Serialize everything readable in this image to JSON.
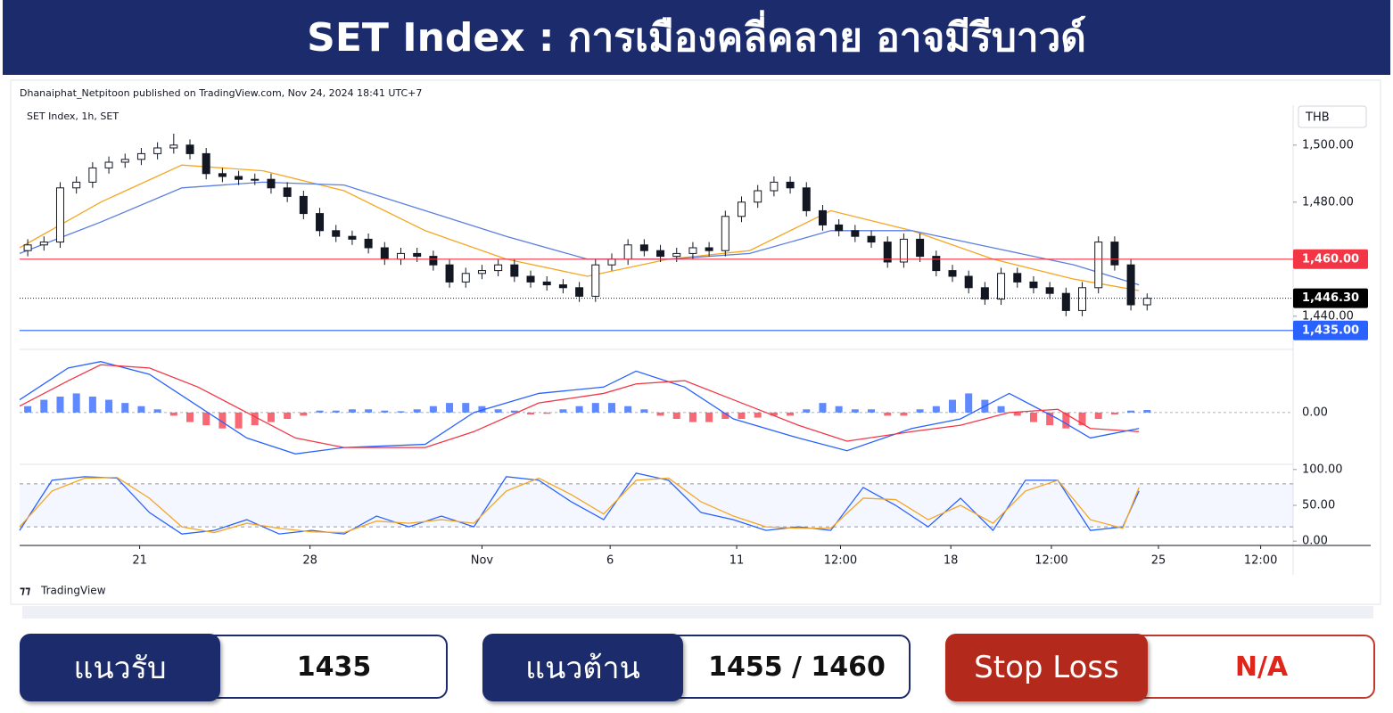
{
  "header": {
    "title": "SET Index : การเมืองคลี่คลาย อาจมีรีบาวด์"
  },
  "attribution": "Dhanaiphat_Netpitoon published on TradingView.com, Nov 24, 2024 18:41 UTC+7",
  "brand": "TradingView",
  "chart_data": [
    {
      "type": "candlestick",
      "symbol": "SET Index, 1h, SET",
      "currency": "THB",
      "open": [
        1463,
        1465,
        1466,
        1485,
        1487,
        1492,
        1494,
        1495,
        1497,
        1499,
        1500,
        1497,
        1490,
        1489,
        1488,
        1488,
        1485,
        1482,
        1476,
        1470,
        1468,
        1467,
        1464,
        1460,
        1462,
        1461,
        1458,
        1452,
        1455,
        1456,
        1458,
        1454,
        1452,
        1451,
        1450,
        1447,
        1458,
        1460,
        1465,
        1463,
        1461,
        1462,
        1464,
        1463,
        1475,
        1480,
        1484,
        1487,
        1485,
        1477,
        1472,
        1470,
        1468,
        1466,
        1459,
        1467,
        1461,
        1456,
        1454,
        1450,
        1446,
        1455,
        1452,
        1450,
        1448,
        1442,
        1450,
        1466,
        1458,
        1444
      ],
      "high": [
        1467,
        1468,
        1487,
        1489,
        1494,
        1496,
        1497,
        1499,
        1501,
        1504,
        1502,
        1499,
        1492,
        1491,
        1490,
        1490,
        1487,
        1484,
        1478,
        1472,
        1470,
        1469,
        1466,
        1464,
        1464,
        1463,
        1460,
        1457,
        1458,
        1460,
        1460,
        1456,
        1454,
        1453,
        1452,
        1460,
        1462,
        1467,
        1467,
        1465,
        1464,
        1466,
        1466,
        1477,
        1482,
        1486,
        1489,
        1489,
        1487,
        1479,
        1474,
        1472,
        1470,
        1468,
        1469,
        1469,
        1463,
        1458,
        1456,
        1452,
        1457,
        1457,
        1454,
        1452,
        1450,
        1452,
        1468,
        1468,
        1460,
        1448
      ],
      "low": [
        1461,
        1463,
        1464,
        1483,
        1485,
        1490,
        1492,
        1493,
        1495,
        1497,
        1495,
        1488,
        1487,
        1486,
        1486,
        1483,
        1480,
        1474,
        1468,
        1466,
        1465,
        1462,
        1458,
        1458,
        1459,
        1456,
        1450,
        1450,
        1453,
        1454,
        1452,
        1450,
        1449,
        1448,
        1445,
        1445,
        1456,
        1458,
        1461,
        1459,
        1459,
        1460,
        1461,
        1461,
        1473,
        1478,
        1482,
        1483,
        1475,
        1470,
        1468,
        1466,
        1464,
        1457,
        1457,
        1459,
        1454,
        1452,
        1448,
        1444,
        1444,
        1450,
        1448,
        1446,
        1440,
        1440,
        1448,
        1456,
        1442,
        1442
      ],
      "close": [
        1465,
        1466,
        1485,
        1487,
        1492,
        1494,
        1495,
        1497,
        1499,
        1500,
        1497,
        1490,
        1489,
        1488,
        1488,
        1485,
        1482,
        1476,
        1470,
        1468,
        1467,
        1464,
        1460,
        1462,
        1461,
        1458,
        1452,
        1455,
        1456,
        1458,
        1454,
        1452,
        1451,
        1450,
        1447,
        1458,
        1460,
        1465,
        1463,
        1461,
        1462,
        1464,
        1463,
        1475,
        1480,
        1484,
        1487,
        1485,
        1477,
        1472,
        1470,
        1468,
        1466,
        1459,
        1467,
        1461,
        1456,
        1454,
        1450,
        1446,
        1455,
        1452,
        1450,
        1448,
        1442,
        1450,
        1466,
        1458,
        1444,
        1446.3
      ],
      "up_color": "#ffffff",
      "down_color": "#131722",
      "overlays": [
        {
          "color": "#f5a623",
          "x": [
            0,
            5,
            10,
            15,
            20,
            25,
            30,
            35,
            40,
            45,
            50,
            55,
            60,
            65,
            69
          ],
          "values": [
            1464,
            1480,
            1493,
            1491,
            1484,
            1470,
            1460,
            1454,
            1460,
            1463,
            1477,
            1470,
            1460,
            1453,
            1449
          ]
        },
        {
          "color": "#5b7fe0",
          "x": [
            0,
            5,
            10,
            15,
            20,
            25,
            30,
            35,
            40,
            45,
            50,
            55,
            60,
            65,
            69
          ],
          "values": [
            1462,
            1473,
            1485,
            1487,
            1486,
            1477,
            1468,
            1460,
            1460,
            1462,
            1470,
            1470,
            1464,
            1458,
            1451
          ]
        }
      ],
      "levels": [
        {
          "value": 1460,
          "label": "1,460.00",
          "color": "#f23645"
        },
        {
          "value": 1435,
          "label": "1,435.00",
          "color": "#2962ff"
        }
      ],
      "last": {
        "value": 1446.3,
        "label": "1,446.30"
      },
      "ylim": [
        1429,
        1514
      ],
      "yticks": [
        {
          "value": 1500,
          "label": "1,500.00"
        },
        {
          "value": 1480,
          "label": "1,480.00"
        },
        {
          "value": 1440,
          "label": "1,440.00"
        }
      ],
      "xlim": [
        0,
        78.5
      ],
      "xticks": [
        {
          "value": 7.4,
          "label": "21"
        },
        {
          "value": 17.9,
          "label": "28"
        },
        {
          "value": 28.5,
          "label": "Nov"
        },
        {
          "value": 36.4,
          "label": "6"
        },
        {
          "value": 44.2,
          "label": "11"
        },
        {
          "value": 50.6,
          "label": "12:00"
        },
        {
          "value": 57.4,
          "label": "18"
        },
        {
          "value": 63.6,
          "label": "12:00"
        },
        {
          "value": 70.2,
          "label": "25"
        },
        {
          "value": 76.5,
          "label": "12:00"
        }
      ]
    },
    {
      "type": "macd",
      "histogram": {
        "up_color": "#2962ff",
        "down_color": "#f23645",
        "values": [
          1,
          2,
          2.5,
          3,
          2.5,
          2,
          1.5,
          1,
          0.5,
          -0.5,
          -1.5,
          -2,
          -2.5,
          -2.5,
          -2,
          -1.5,
          -1,
          -0.5,
          0.3,
          0.3,
          0.5,
          0.5,
          0.3,
          0.2,
          0.5,
          1,
          1.5,
          1.5,
          1,
          0.5,
          0.3,
          -0.3,
          -0.2,
          0.5,
          1,
          1.5,
          1.5,
          1,
          0.5,
          -0.5,
          -1,
          -1.5,
          -1.5,
          -1,
          -1,
          -0.8,
          -0.5,
          -0.5,
          0.5,
          1.5,
          1,
          0.5,
          0.5,
          -0.5,
          -0.5,
          0.5,
          1,
          2,
          3,
          2,
          1,
          -0.5,
          -1.5,
          -2,
          -2.5,
          -2,
          -1,
          -0.3,
          0.3,
          0.4
        ]
      },
      "series": [
        {
          "color": "#2962ff",
          "x": [
            0,
            3,
            5,
            8,
            11,
            14,
            17,
            20,
            25,
            28,
            32,
            36,
            38,
            41,
            44,
            48,
            51,
            55,
            58,
            61,
            64,
            66,
            69
          ],
          "values": [
            2,
            7,
            8,
            6,
            1,
            -4,
            -6.5,
            -5.5,
            -5,
            0,
            3,
            4,
            6.5,
            4,
            -1,
            -4,
            -6,
            -2.5,
            -1,
            3,
            -1,
            -4,
            -2.5
          ]
        },
        {
          "color": "#f23645",
          "x": [
            0,
            3,
            5,
            8,
            11,
            14,
            17,
            20,
            25,
            28,
            32,
            36,
            38,
            41,
            44,
            48,
            51,
            55,
            58,
            61,
            64,
            66,
            69
          ],
          "values": [
            1,
            5,
            7.5,
            7,
            4,
            0,
            -4,
            -5.5,
            -5.5,
            -3,
            1.5,
            3,
            4.5,
            5,
            2,
            -2,
            -4.5,
            -3,
            -2,
            0,
            0.5,
            -2.5,
            -3
          ]
        }
      ],
      "ylim": [
        -8,
        9.5
      ],
      "yticks": [
        {
          "value": 0,
          "label": "0.00"
        }
      ]
    },
    {
      "type": "stochastic",
      "series": [
        {
          "color": "#2962ff",
          "x": [
            0,
            2,
            4,
            6,
            8,
            10,
            12,
            14,
            16,
            18,
            20,
            22,
            24,
            26,
            28,
            30,
            32,
            34,
            36,
            38,
            40,
            42,
            44,
            46,
            48,
            50,
            52,
            54,
            56,
            58,
            60,
            62,
            64,
            66,
            68,
            69
          ],
          "values": [
            15,
            85,
            90,
            88,
            40,
            10,
            15,
            30,
            10,
            15,
            10,
            35,
            20,
            35,
            20,
            90,
            85,
            55,
            30,
            95,
            85,
            40,
            30,
            15,
            20,
            15,
            75,
            50,
            20,
            60,
            15,
            85,
            85,
            15,
            20,
            70
          ]
        },
        {
          "color": "#f5a623",
          "x": [
            0,
            2,
            4,
            6,
            8,
            10,
            12,
            14,
            16,
            18,
            20,
            22,
            24,
            26,
            28,
            30,
            32,
            34,
            36,
            38,
            40,
            42,
            44,
            46,
            48,
            50,
            52,
            54,
            56,
            58,
            60,
            62,
            64,
            66,
            68,
            69
          ],
          "values": [
            20,
            70,
            88,
            89,
            60,
            20,
            12,
            25,
            18,
            13,
            12,
            28,
            25,
            30,
            25,
            70,
            88,
            65,
            38,
            85,
            88,
            55,
            35,
            20,
            18,
            18,
            60,
            58,
            30,
            50,
            25,
            70,
            85,
            30,
            18,
            75
          ]
        }
      ],
      "bands": [
        20,
        80
      ],
      "ylim": [
        -6,
        106
      ],
      "yticks": [
        {
          "value": 100,
          "label": "100.00"
        },
        {
          "value": 50,
          "label": "50.00"
        },
        {
          "value": 0,
          "label": "0.00"
        }
      ]
    }
  ],
  "panels": [
    {
      "label": "แนวรับ",
      "value": "1435"
    },
    {
      "label": "แนวต้าน",
      "value": "1455 / 1460"
    },
    {
      "label": "Stop Loss",
      "value": "N/A"
    }
  ]
}
